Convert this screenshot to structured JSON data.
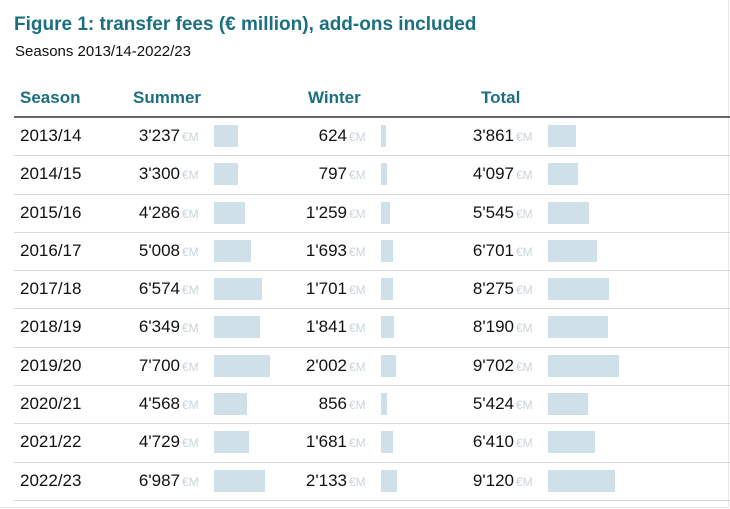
{
  "title": "Figure 1: transfer fees (€ million), add-ons included",
  "subtitle": "Seasons 2013/14-2022/23",
  "headers": {
    "season": "Season",
    "summer": "Summer",
    "winter": "Winter",
    "total": "Total"
  },
  "unit_label": "€M",
  "colors": {
    "title": "#1b6f80",
    "bar": "#cfe0e8",
    "unit": "#c9d5db"
  },
  "chart_data": {
    "type": "table",
    "title": "Figure 1: transfer fees (€ million), add-ons included",
    "subtitle": "Seasons 2013/14-2022/23",
    "columns": [
      "Season",
      "Summer",
      "Winter",
      "Total"
    ],
    "unit": "€ million",
    "rows": [
      {
        "season": "2013/14",
        "summer": 3237,
        "summer_label": "3'237",
        "winter": 624,
        "winter_label": "624",
        "total": 3861,
        "total_label": "3'861"
      },
      {
        "season": "2014/15",
        "summer": 3300,
        "summer_label": "3'300",
        "winter": 797,
        "winter_label": "797",
        "total": 4097,
        "total_label": "4'097"
      },
      {
        "season": "2015/16",
        "summer": 4286,
        "summer_label": "4'286",
        "winter": 1259,
        "winter_label": "1'259",
        "total": 5545,
        "total_label": "5'545"
      },
      {
        "season": "2016/17",
        "summer": 5008,
        "summer_label": "5'008",
        "winter": 1693,
        "winter_label": "1'693",
        "total": 6701,
        "total_label": "6'701"
      },
      {
        "season": "2017/18",
        "summer": 6574,
        "summer_label": "6'574",
        "winter": 1701,
        "winter_label": "1'701",
        "total": 8275,
        "total_label": "8'275"
      },
      {
        "season": "2018/19",
        "summer": 6349,
        "summer_label": "6'349",
        "winter": 1841,
        "winter_label": "1'841",
        "total": 8190,
        "total_label": "8'190"
      },
      {
        "season": "2019/20",
        "summer": 7700,
        "summer_label": "7'700",
        "winter": 2002,
        "winter_label": "2'002",
        "total": 9702,
        "total_label": "9'702"
      },
      {
        "season": "2020/21",
        "summer": 4568,
        "summer_label": "4'568",
        "winter": 856,
        "winter_label": "856",
        "total": 5424,
        "total_label": "5'424"
      },
      {
        "season": "2021/22",
        "summer": 4729,
        "summer_label": "4'729",
        "winter": 1681,
        "winter_label": "1'681",
        "total": 6410,
        "total_label": "6'410"
      },
      {
        "season": "2022/23",
        "summer": 6987,
        "summer_label": "6'987",
        "winter": 2133,
        "winter_label": "2'133",
        "total": 9120,
        "total_label": "9'120"
      }
    ]
  }
}
